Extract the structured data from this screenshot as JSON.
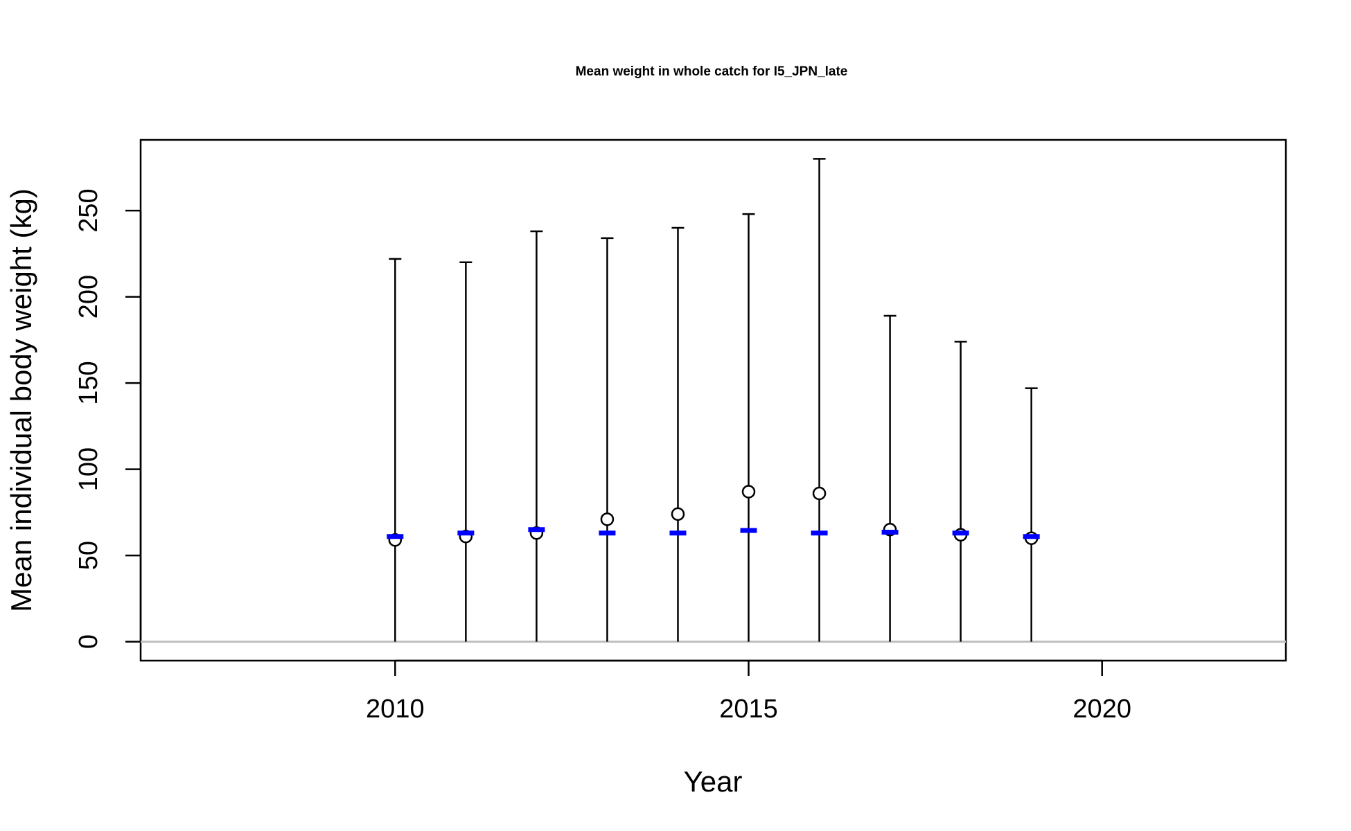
{
  "chart_data": {
    "type": "scatter",
    "title": "Mean weight in whole catch for I5_JPN_late",
    "xlabel": "Year",
    "ylabel": "Mean individual body weight (kg)",
    "xlim": [
      2006.4,
      2022.6
    ],
    "ylim": [
      -11,
      291
    ],
    "x_ticks": [
      2010,
      2015,
      2020
    ],
    "y_ticks": [
      0,
      50,
      100,
      150,
      200,
      250
    ],
    "grid": false,
    "legend": "none",
    "reference_line": {
      "y": 0,
      "color": "#bebebe"
    },
    "colors": {
      "observed": "#000000",
      "expected": "#0000ff",
      "interval": "#000000"
    },
    "series": [
      {
        "x": [
          2010,
          2011,
          2012,
          2013,
          2014,
          2015,
          2016,
          2017,
          2018,
          2019
        ],
        "observed": [
          59,
          61,
          63,
          71,
          74,
          87,
          86,
          65,
          62,
          60
        ],
        "expected": [
          61,
          63,
          65,
          63,
          63,
          64.5,
          63,
          63.5,
          63,
          61
        ],
        "upper": [
          222,
          220,
          238,
          234,
          240,
          248,
          280,
          189,
          174,
          147
        ],
        "lower": [
          0,
          0,
          0,
          0,
          0,
          0,
          0,
          0,
          0,
          0
        ]
      }
    ]
  }
}
